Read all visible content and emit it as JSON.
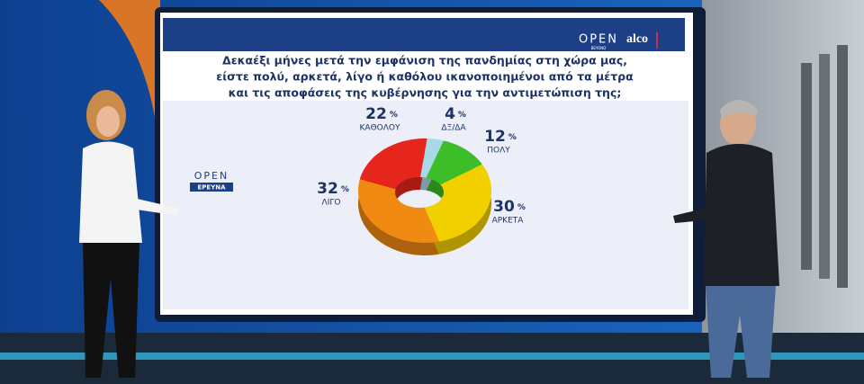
{
  "chart_data": {
    "type": "pie",
    "title": [
      "Δεκαέξι μήνες μετά την εμφάνιση της πανδημίας στη χώρα μας,",
      "είστε πολύ, αρκετά, λίγο ή καθόλου ικανοποιημένοι από τα μέτρα",
      "και τις αποφάσεις της κυβέρνησης για την αντιμετώπιση της;"
    ],
    "categories": [
      "ΔΞ/ΔΑ",
      "ΠΟΛΥ",
      "ΑΡΚΕΤΑ",
      "ΛΙΓΟ",
      "ΚΑΘΟΛΟΥ"
    ],
    "values": [
      4,
      12,
      30,
      32,
      22
    ],
    "value_labels": [
      "4%",
      "12%",
      "30%",
      "32%",
      "22%"
    ],
    "colors": [
      "#a9d9e6",
      "#3dbd28",
      "#f2d000",
      "#f08a12",
      "#e6251c"
    ],
    "donut": true
  },
  "branding": {
    "channel": "OPEN",
    "channel_sub": "BEYOND",
    "pollster": "alco",
    "segment": "OPEN",
    "segment_sub": "ΕΡΕΥΝΑ"
  }
}
